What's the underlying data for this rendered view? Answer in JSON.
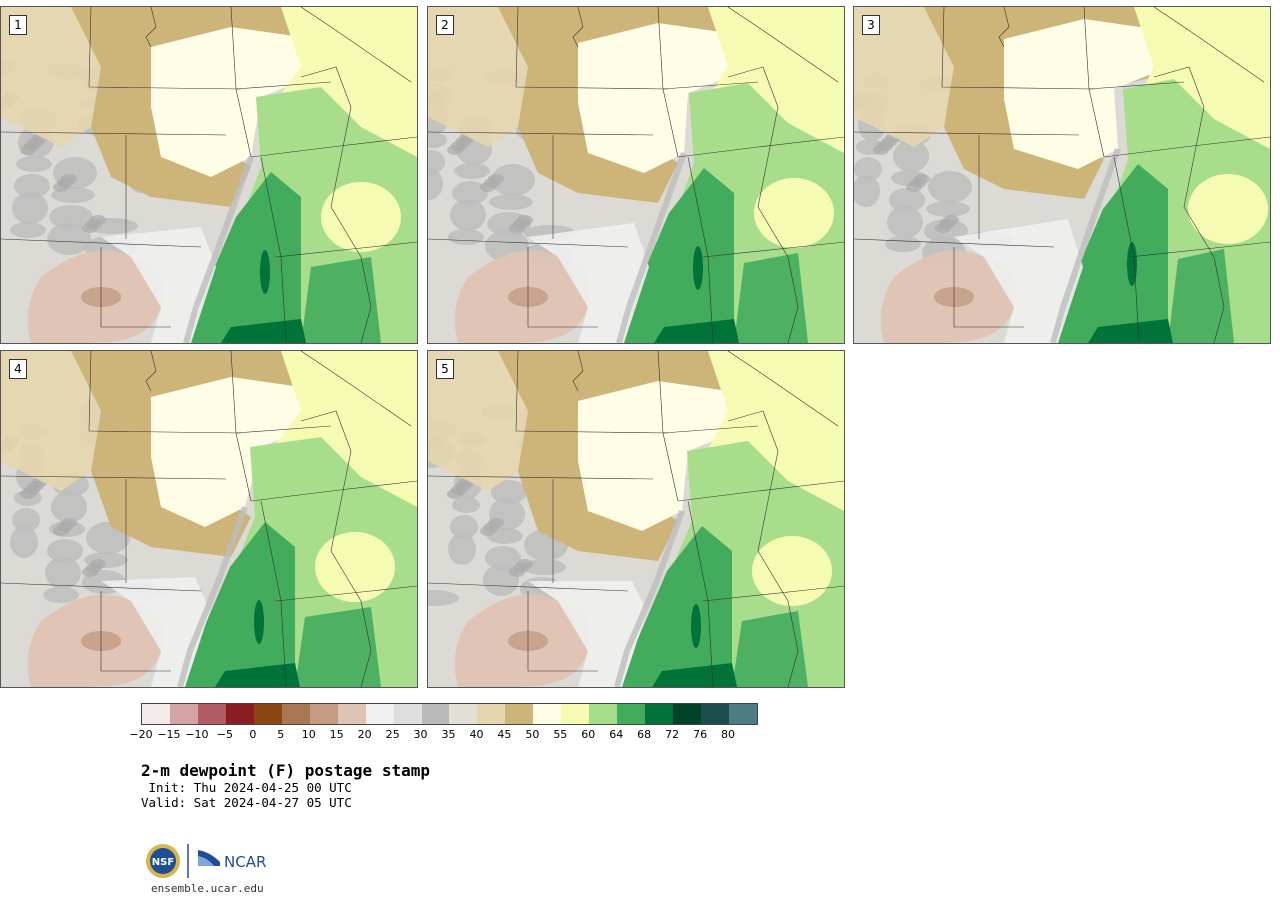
{
  "panels": [
    {
      "label": "1"
    },
    {
      "label": "2"
    },
    {
      "label": "3"
    },
    {
      "label": "4"
    },
    {
      "label": "5"
    }
  ],
  "colorbar": {
    "colors": [
      "#f4ecec",
      "#d5a2a6",
      "#b05c64",
      "#8c1c24",
      "#8a4712",
      "#a87650",
      "#c39a82",
      "#dfc4b4",
      "#f0f0f0",
      "#dedede",
      "#b9b9b9",
      "#e2e0d4",
      "#e6d6ae",
      "#cdb478",
      "#fffde6",
      "#f6fbb4",
      "#a8dd8c",
      "#42ac5c",
      "#007338",
      "#00432a",
      "#1c4e4e",
      "#4c7c84"
    ],
    "tick_labels": [
      "−20",
      "−15",
      "−10",
      "−5",
      "0",
      "5",
      "10",
      "15",
      "20",
      "25",
      "30",
      "35",
      "40",
      "45",
      "50",
      "55",
      "60",
      "64",
      "68",
      "72",
      "76",
      "80"
    ]
  },
  "title": "2-m dewpoint (F) postage stamp",
  "init_line": " Init: Thu 2024-04-25 00 UTC",
  "valid_line": "Valid: Sat 2024-04-27 05 UTC",
  "logo": {
    "nsf_text": "NSF",
    "ncar_text": "NCAR"
  },
  "website": "ensemble.ucar.edu"
}
